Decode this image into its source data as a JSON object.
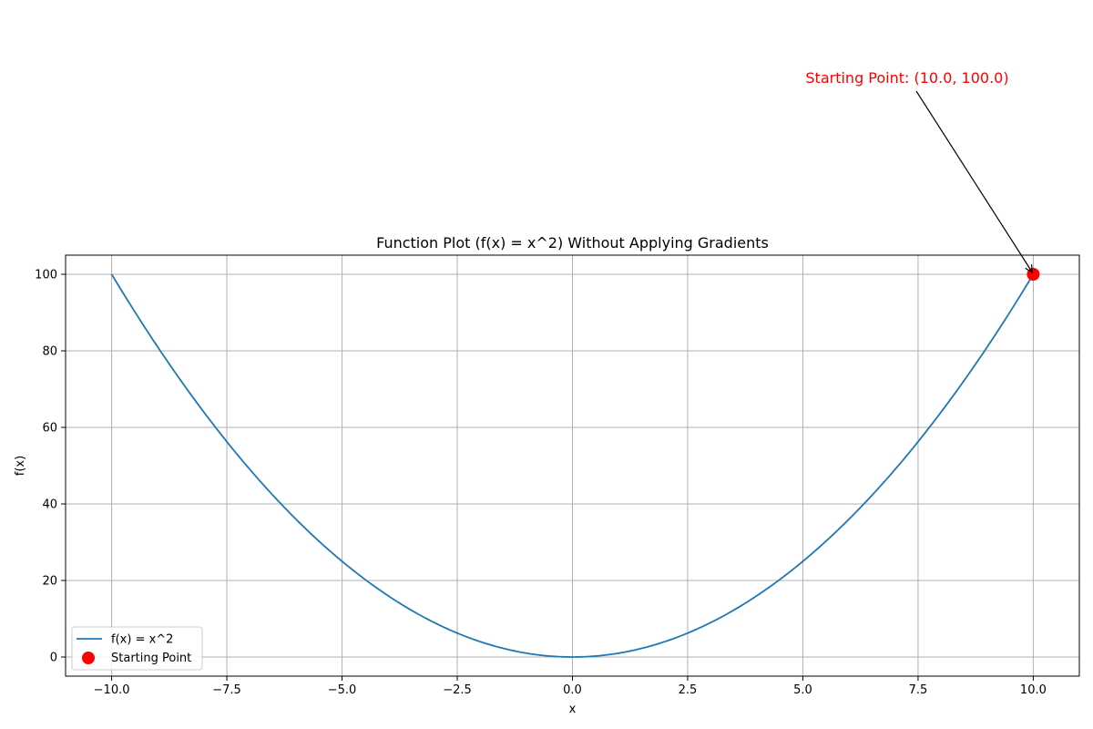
{
  "chart_data": {
    "type": "line",
    "title": "Function Plot (f(x) = x^2) Without Applying Gradients",
    "xlabel": "x",
    "ylabel": "f(x)",
    "xlim": [
      -11,
      11
    ],
    "ylim": [
      -5,
      105
    ],
    "grid": true,
    "legend_placement": "lower-left",
    "x_ticks": [
      -10.0,
      -7.5,
      -5.0,
      -2.5,
      0.0,
      2.5,
      5.0,
      7.5,
      10.0
    ],
    "x_tick_labels": [
      "−10.0",
      "−7.5",
      "−5.0",
      "−2.5",
      "0.0",
      "2.5",
      "5.0",
      "7.5",
      "10.0"
    ],
    "y_ticks": [
      0,
      20,
      40,
      60,
      80,
      100
    ],
    "y_tick_labels": [
      "0",
      "20",
      "40",
      "60",
      "80",
      "100"
    ],
    "series": [
      {
        "name": "f(x) = x^2",
        "kind": "line",
        "color": "#1f77b4",
        "x_range": [
          -10,
          10
        ],
        "function": "x^2"
      },
      {
        "name": "Starting Point",
        "kind": "scatter",
        "color": "#ff0000",
        "points": [
          {
            "x": 10.0,
            "y": 100.0
          }
        ]
      }
    ],
    "annotations": [
      {
        "text": "Starting Point: (10.0, 100.0)",
        "color": "#ff0000",
        "target": {
          "x": 10.0,
          "y": 100.0
        }
      }
    ]
  }
}
